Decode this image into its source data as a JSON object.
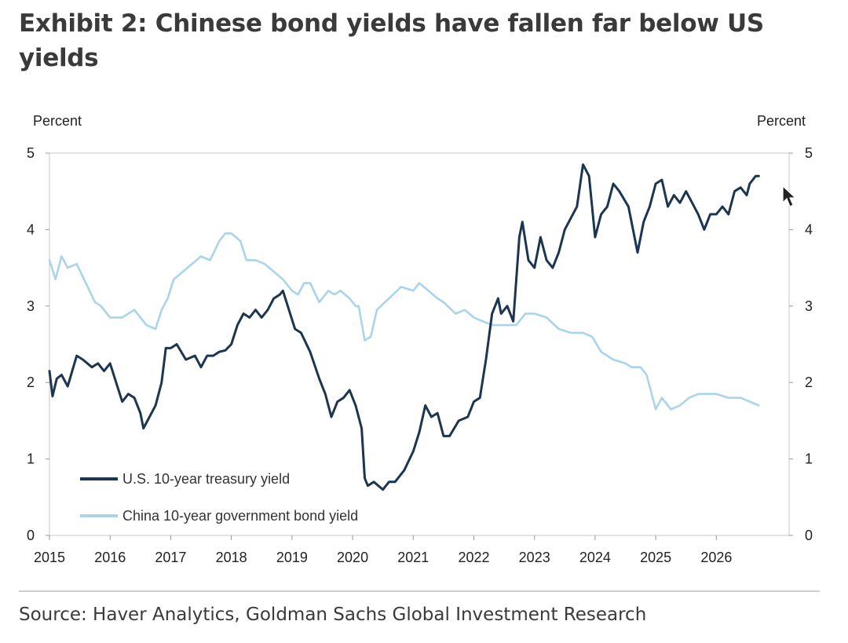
{
  "title": "Exhibit 2: Chinese bond yields have fallen far below US yields",
  "source": "Source: Haver Analytics, Goldman Sachs Global Investment Research",
  "chart_data": {
    "type": "line",
    "title": "Exhibit 2: Chinese bond yields have fallen far below US yields",
    "y_left_label": "Percent",
    "y_right_label": "Percent",
    "ylim": [
      0,
      5
    ],
    "xlim": [
      2015,
      2027.2
    ],
    "x_ticks": [
      2015,
      2016,
      2017,
      2018,
      2019,
      2020,
      2021,
      2022,
      2023,
      2024,
      2025,
      2026
    ],
    "x_tick_labels": [
      "2015",
      "2016",
      "2017",
      "2018",
      "2019",
      "2020",
      "2021",
      "2022",
      "2023",
      "2024",
      "2025",
      "2026"
    ],
    "y_ticks": [
      0,
      1,
      2,
      3,
      4,
      5
    ],
    "y_tick_labels": [
      "0",
      "1",
      "2",
      "3",
      "4",
      "5"
    ],
    "grid": false,
    "legend_position": "bottom-left",
    "colors": {
      "us": "#1c3550",
      "china": "#a9d4ea"
    },
    "series": [
      {
        "name": "U.S. 10-year treasury yield",
        "x": [
          2015.0,
          2015.05,
          2015.12,
          2015.2,
          2015.3,
          2015.45,
          2015.55,
          2015.7,
          2015.8,
          2015.9,
          2016.0,
          2016.1,
          2016.2,
          2016.3,
          2016.4,
          2016.5,
          2016.55,
          2016.65,
          2016.75,
          2016.85,
          2016.92,
          2017.0,
          2017.1,
          2017.25,
          2017.4,
          2017.5,
          2017.6,
          2017.7,
          2017.8,
          2017.9,
          2018.0,
          2018.1,
          2018.2,
          2018.3,
          2018.4,
          2018.5,
          2018.6,
          2018.7,
          2018.8,
          2018.85,
          2018.95,
          2019.05,
          2019.15,
          2019.3,
          2019.45,
          2019.55,
          2019.65,
          2019.75,
          2019.85,
          2019.95,
          2020.05,
          2020.15,
          2020.2,
          2020.25,
          2020.35,
          2020.5,
          2020.6,
          2020.7,
          2020.85,
          2021.0,
          2021.1,
          2021.2,
          2021.3,
          2021.4,
          2021.5,
          2021.6,
          2021.75,
          2021.9,
          2022.0,
          2022.1,
          2022.2,
          2022.3,
          2022.4,
          2022.45,
          2022.55,
          2022.65,
          2022.75,
          2022.8,
          2022.9,
          2023.0,
          2023.1,
          2023.2,
          2023.3,
          2023.4,
          2023.5,
          2023.6,
          2023.7,
          2023.8,
          2023.9,
          2024.0,
          2024.1,
          2024.2,
          2024.3,
          2024.4,
          2024.55,
          2024.7,
          2024.8,
          2024.9,
          2025.0,
          2025.1,
          2025.2,
          2025.3,
          2025.4,
          2025.5,
          2025.6,
          2025.7,
          2025.8,
          2025.9,
          2026.0,
          2026.1,
          2026.2,
          2026.3,
          2026.4,
          2026.5,
          2026.55,
          2026.65,
          2026.7
        ],
        "values": [
          2.15,
          1.82,
          2.05,
          2.1,
          1.95,
          2.35,
          2.3,
          2.2,
          2.25,
          2.15,
          2.25,
          2.0,
          1.75,
          1.85,
          1.8,
          1.6,
          1.4,
          1.55,
          1.7,
          2.0,
          2.45,
          2.45,
          2.5,
          2.3,
          2.35,
          2.2,
          2.35,
          2.35,
          2.4,
          2.42,
          2.5,
          2.75,
          2.9,
          2.85,
          2.95,
          2.85,
          2.95,
          3.1,
          3.15,
          3.2,
          2.95,
          2.7,
          2.65,
          2.4,
          2.05,
          1.85,
          1.55,
          1.75,
          1.8,
          1.9,
          1.7,
          1.4,
          0.75,
          0.65,
          0.7,
          0.6,
          0.7,
          0.7,
          0.85,
          1.1,
          1.35,
          1.7,
          1.55,
          1.6,
          1.3,
          1.3,
          1.5,
          1.55,
          1.75,
          1.8,
          2.3,
          2.9,
          3.1,
          2.9,
          3.0,
          2.8,
          3.9,
          4.1,
          3.6,
          3.5,
          3.9,
          3.6,
          3.5,
          3.7,
          4.0,
          4.15,
          4.3,
          4.85,
          4.7,
          3.9,
          4.2,
          4.3,
          4.6,
          4.5,
          4.3,
          3.7,
          4.1,
          4.3,
          4.6,
          4.65,
          4.3,
          4.45,
          4.35,
          4.5,
          4.35,
          4.2,
          4.0,
          4.2,
          4.2,
          4.3,
          4.2,
          4.5,
          4.55,
          4.45,
          4.6,
          4.7,
          4.7
        ]
      },
      {
        "name": "China 10-year government bond yield",
        "x": [
          2015.0,
          2015.1,
          2015.2,
          2015.3,
          2015.45,
          2015.6,
          2015.75,
          2015.85,
          2016.0,
          2016.2,
          2016.4,
          2016.6,
          2016.75,
          2016.85,
          2016.95,
          2017.05,
          2017.2,
          2017.35,
          2017.5,
          2017.65,
          2017.8,
          2017.9,
          2018.0,
          2018.15,
          2018.25,
          2018.4,
          2018.55,
          2018.7,
          2018.85,
          2019.0,
          2019.1,
          2019.2,
          2019.3,
          2019.45,
          2019.6,
          2019.7,
          2019.8,
          2019.95,
          2020.05,
          2020.1,
          2020.2,
          2020.3,
          2020.4,
          2020.6,
          2020.8,
          2021.0,
          2021.1,
          2021.25,
          2021.4,
          2021.5,
          2021.7,
          2021.85,
          2022.0,
          2022.15,
          2022.3,
          2022.5,
          2022.7,
          2022.85,
          2023.0,
          2023.2,
          2023.4,
          2023.6,
          2023.8,
          2023.95,
          2024.1,
          2024.3,
          2024.5,
          2024.6,
          2024.75,
          2024.85,
          2025.0,
          2025.1,
          2025.25,
          2025.4,
          2025.55,
          2025.7,
          2025.85,
          2026.0,
          2026.2,
          2026.4,
          2026.55,
          2026.7
        ],
        "values": [
          3.6,
          3.35,
          3.65,
          3.5,
          3.55,
          3.3,
          3.05,
          3.0,
          2.85,
          2.85,
          2.95,
          2.75,
          2.7,
          2.95,
          3.1,
          3.35,
          3.45,
          3.55,
          3.65,
          3.6,
          3.85,
          3.95,
          3.95,
          3.85,
          3.6,
          3.6,
          3.55,
          3.45,
          3.35,
          3.2,
          3.15,
          3.3,
          3.3,
          3.05,
          3.2,
          3.15,
          3.2,
          3.1,
          3.0,
          3.0,
          2.55,
          2.6,
          2.95,
          3.1,
          3.25,
          3.2,
          3.3,
          3.2,
          3.1,
          3.05,
          2.9,
          2.95,
          2.85,
          2.8,
          2.75,
          2.75,
          2.75,
          2.9,
          2.9,
          2.85,
          2.7,
          2.65,
          2.65,
          2.6,
          2.4,
          2.3,
          2.25,
          2.2,
          2.2,
          2.1,
          1.65,
          1.8,
          1.65,
          1.7,
          1.8,
          1.85,
          1.85,
          1.85,
          1.8,
          1.8,
          1.75,
          1.7
        ]
      }
    ]
  }
}
